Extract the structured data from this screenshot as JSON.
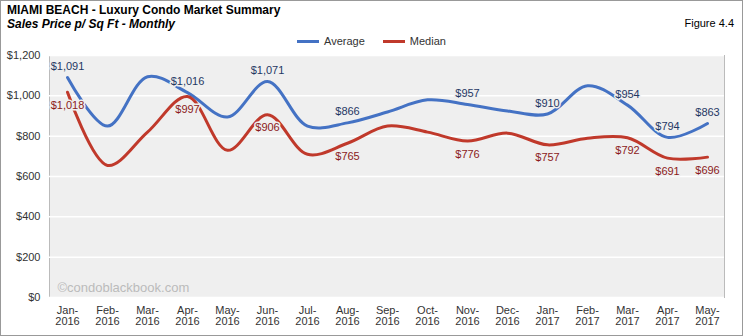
{
  "chart_data": {
    "type": "line",
    "title": "MIAMI BEACH - Luxury Condo Market Summary",
    "subtitle": "Sales Price  p/ Sq Ft - Monthly",
    "figure_label": "Figure 4.4",
    "annotations": [
      "©condoblackbook.com"
    ],
    "categories": [
      "Jan-2016",
      "Feb-2016",
      "Mar-2016",
      "Apr-2016",
      "May-2016",
      "Jun-2016",
      "Jul-2016",
      "Aug-2016",
      "Sep-2016",
      "Oct-2016",
      "Nov-2016",
      "Dec-2016",
      "Jan-2017",
      "Feb-2017",
      "Mar-2017",
      "Apr-2017",
      "May-2017"
    ],
    "series": [
      {
        "name": "Average",
        "color": "#4472c4",
        "values": [
          1091,
          850,
          1095,
          1016,
          895,
          1071,
          850,
          866,
          920,
          980,
          957,
          925,
          910,
          1050,
          954,
          794,
          863
        ],
        "value_labels": [
          "$1,091",
          null,
          null,
          "$1,016",
          null,
          "$1,071",
          null,
          "$866",
          null,
          null,
          "$957",
          null,
          "$910",
          null,
          "$954",
          "$794",
          "$863"
        ]
      },
      {
        "name": "Median",
        "color": "#c0392b",
        "values": [
          1018,
          655,
          820,
          997,
          730,
          906,
          710,
          765,
          850,
          820,
          776,
          815,
          757,
          790,
          792,
          691,
          696
        ],
        "value_labels": [
          "$1,018",
          null,
          null,
          "$997",
          null,
          "$906",
          null,
          "$765",
          null,
          null,
          "$776",
          null,
          "$757",
          null,
          "$792",
          "$691",
          "$696"
        ]
      }
    ],
    "ylim": [
      0,
      1200
    ],
    "yticks": [
      {
        "value": 0,
        "label": "$0"
      },
      {
        "value": 200,
        "label": "$200"
      },
      {
        "value": 400,
        "label": "$400"
      },
      {
        "value": 600,
        "label": "$600"
      },
      {
        "value": 800,
        "label": "$800"
      },
      {
        "value": 1000,
        "label": "$1,000"
      },
      {
        "value": 1200,
        "label": "$1,200"
      }
    ],
    "grid": true,
    "legend": "top",
    "data_labels": true,
    "line_style": "smooth"
  }
}
